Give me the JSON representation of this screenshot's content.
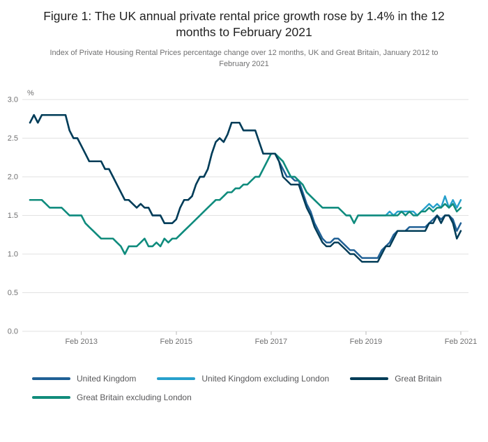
{
  "header": {
    "title": "Figure 1: The UK annual private rental price growth rose by 1.4% in the 12 months to February 2021",
    "subtitle": "Index of Private Housing Rental Prices percentage change over 12 months, UK and Great Britain, January 2012 to February 2021"
  },
  "chart_data": {
    "type": "line",
    "title": "Figure 1: The UK annual private rental price growth rose by 1.4% in the 12 months to February 2021",
    "subtitle": "Index of Private Housing Rental Prices percentage change over 12 months, UK and Great Britain, January 2012 to February 2021",
    "unit_label": "%",
    "ylim": [
      0.0,
      3.0
    ],
    "ytick_step": 0.5,
    "grid": true,
    "legend_position": "bottom",
    "x_range": {
      "start": "January 2012",
      "end": "February 2021",
      "frequency": "monthly"
    },
    "x_tick_labels": [
      "Feb 2013",
      "Feb 2015",
      "Feb 2017",
      "Feb 2019",
      "Feb 2021"
    ],
    "x_tick_indices": [
      13,
      37,
      61,
      85,
      109
    ],
    "draw_order": [
      0,
      1,
      3,
      2
    ],
    "series": [
      {
        "name": "United Kingdom",
        "color": "#206095",
        "values": [
          2.7,
          2.8,
          2.7,
          2.8,
          2.8,
          2.8,
          2.8,
          2.8,
          2.8,
          2.8,
          2.6,
          2.5,
          2.5,
          2.4,
          2.3,
          2.2,
          2.2,
          2.2,
          2.2,
          2.1,
          2.1,
          2.0,
          1.9,
          1.8,
          1.7,
          1.7,
          1.65,
          1.6,
          1.65,
          1.6,
          1.6,
          1.5,
          1.5,
          1.5,
          1.4,
          1.4,
          1.4,
          1.45,
          1.6,
          1.7,
          1.7,
          1.75,
          1.9,
          2.0,
          2.0,
          2.1,
          2.3,
          2.45,
          2.5,
          2.45,
          2.55,
          2.7,
          2.7,
          2.7,
          2.6,
          2.6,
          2.6,
          2.6,
          2.45,
          2.3,
          2.3,
          2.3,
          2.3,
          2.2,
          2.1,
          2.0,
          2.0,
          1.95,
          1.95,
          1.8,
          1.65,
          1.55,
          1.4,
          1.3,
          1.2,
          1.15,
          1.15,
          1.2,
          1.2,
          1.15,
          1.1,
          1.05,
          1.05,
          1.0,
          0.95,
          0.95,
          0.95,
          0.95,
          0.95,
          1.05,
          1.1,
          1.15,
          1.25,
          1.3,
          1.3,
          1.3,
          1.35,
          1.35,
          1.35,
          1.35,
          1.35,
          1.4,
          1.45,
          1.5,
          1.45,
          1.5,
          1.5,
          1.45,
          1.3,
          1.4
        ]
      },
      {
        "name": "United Kingdom excluding London",
        "color": "#27a0cc",
        "values": [
          1.7,
          1.7,
          1.7,
          1.7,
          1.65,
          1.6,
          1.6,
          1.6,
          1.6,
          1.55,
          1.5,
          1.5,
          1.5,
          1.5,
          1.4,
          1.35,
          1.3,
          1.25,
          1.2,
          1.2,
          1.2,
          1.2,
          1.15,
          1.1,
          1.0,
          1.1,
          1.1,
          1.1,
          1.15,
          1.2,
          1.1,
          1.1,
          1.15,
          1.1,
          1.2,
          1.15,
          1.2,
          1.2,
          1.25,
          1.3,
          1.35,
          1.4,
          1.45,
          1.5,
          1.55,
          1.6,
          1.65,
          1.7,
          1.7,
          1.75,
          1.8,
          1.8,
          1.85,
          1.85,
          1.9,
          1.9,
          1.95,
          2.0,
          2.0,
          2.1,
          2.2,
          2.3,
          2.3,
          2.25,
          2.2,
          2.1,
          2.0,
          2.0,
          1.95,
          1.9,
          1.8,
          1.75,
          1.7,
          1.65,
          1.6,
          1.6,
          1.6,
          1.6,
          1.6,
          1.55,
          1.5,
          1.5,
          1.4,
          1.5,
          1.5,
          1.5,
          1.5,
          1.5,
          1.5,
          1.5,
          1.5,
          1.55,
          1.5,
          1.55,
          1.55,
          1.55,
          1.55,
          1.55,
          1.5,
          1.55,
          1.6,
          1.65,
          1.6,
          1.65,
          1.6,
          1.75,
          1.6,
          1.7,
          1.6,
          1.7
        ]
      },
      {
        "name": "Great Britain",
        "color": "#003c57",
        "values": [
          2.7,
          2.8,
          2.7,
          2.8,
          2.8,
          2.8,
          2.8,
          2.8,
          2.8,
          2.8,
          2.6,
          2.5,
          2.5,
          2.4,
          2.3,
          2.2,
          2.2,
          2.2,
          2.2,
          2.1,
          2.1,
          2.0,
          1.9,
          1.8,
          1.7,
          1.7,
          1.65,
          1.6,
          1.65,
          1.6,
          1.6,
          1.5,
          1.5,
          1.5,
          1.4,
          1.4,
          1.4,
          1.45,
          1.6,
          1.7,
          1.7,
          1.75,
          1.9,
          2.0,
          2.0,
          2.1,
          2.3,
          2.45,
          2.5,
          2.45,
          2.55,
          2.7,
          2.7,
          2.7,
          2.6,
          2.6,
          2.6,
          2.6,
          2.45,
          2.3,
          2.3,
          2.3,
          2.3,
          2.2,
          2.0,
          1.95,
          1.9,
          1.9,
          1.9,
          1.75,
          1.6,
          1.5,
          1.35,
          1.25,
          1.15,
          1.1,
          1.1,
          1.15,
          1.15,
          1.1,
          1.05,
          1.0,
          1.0,
          0.95,
          0.9,
          0.9,
          0.9,
          0.9,
          0.9,
          1.0,
          1.1,
          1.1,
          1.2,
          1.3,
          1.3,
          1.3,
          1.3,
          1.3,
          1.3,
          1.3,
          1.3,
          1.4,
          1.4,
          1.5,
          1.4,
          1.5,
          1.5,
          1.4,
          1.2,
          1.3
        ]
      },
      {
        "name": "Great Britain excluding London",
        "color": "#118c7b",
        "values": [
          1.7,
          1.7,
          1.7,
          1.7,
          1.65,
          1.6,
          1.6,
          1.6,
          1.6,
          1.55,
          1.5,
          1.5,
          1.5,
          1.5,
          1.4,
          1.35,
          1.3,
          1.25,
          1.2,
          1.2,
          1.2,
          1.2,
          1.15,
          1.1,
          1.0,
          1.1,
          1.1,
          1.1,
          1.15,
          1.2,
          1.1,
          1.1,
          1.15,
          1.1,
          1.2,
          1.15,
          1.2,
          1.2,
          1.25,
          1.3,
          1.35,
          1.4,
          1.45,
          1.5,
          1.55,
          1.6,
          1.65,
          1.7,
          1.7,
          1.75,
          1.8,
          1.8,
          1.85,
          1.85,
          1.9,
          1.9,
          1.95,
          2.0,
          2.0,
          2.1,
          2.2,
          2.3,
          2.3,
          2.25,
          2.2,
          2.1,
          2.0,
          2.0,
          1.95,
          1.9,
          1.8,
          1.75,
          1.7,
          1.65,
          1.6,
          1.6,
          1.6,
          1.6,
          1.6,
          1.55,
          1.5,
          1.5,
          1.4,
          1.5,
          1.5,
          1.5,
          1.5,
          1.5,
          1.5,
          1.5,
          1.5,
          1.5,
          1.5,
          1.5,
          1.55,
          1.5,
          1.55,
          1.5,
          1.5,
          1.55,
          1.55,
          1.6,
          1.55,
          1.6,
          1.6,
          1.65,
          1.6,
          1.65,
          1.55,
          1.6
        ]
      }
    ]
  }
}
